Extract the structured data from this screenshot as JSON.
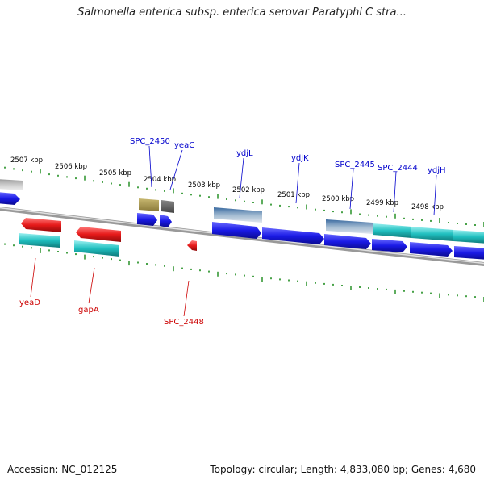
{
  "title": "Salmonella enterica subsp. enterica serovar Paratyphi C stra...",
  "footer": {
    "accession": "Accession: NC_012125",
    "topology": "Topology: circular; Length: 4,833,080 bp; Genes: 4,680"
  },
  "scale_labels": [
    "2507 kbp",
    "2506 kbp",
    "2505 kbp",
    "2504 kbp",
    "2503 kbp",
    "2502 kbp",
    "2501 kbp",
    "2500 kbp",
    "2499 kbp",
    "2498 kbp"
  ],
  "gene_labels_top": [
    "SPC_2450",
    "yeaC",
    "ydjL",
    "ydjK",
    "SPC_2445",
    "SPC_2444",
    "ydjH"
  ],
  "gene_labels_bottom": [
    "yeaD",
    "gapA",
    "SPC_2448"
  ],
  "colors": {
    "label_top": "#0000cc",
    "label_bottom": "#cc0000",
    "cds_blue": "#1a1ae6",
    "cds_red": "#e61a1a",
    "cds_cyan": "#20c0c0",
    "backbone": "#888888",
    "tick": "#1a8a1a"
  }
}
